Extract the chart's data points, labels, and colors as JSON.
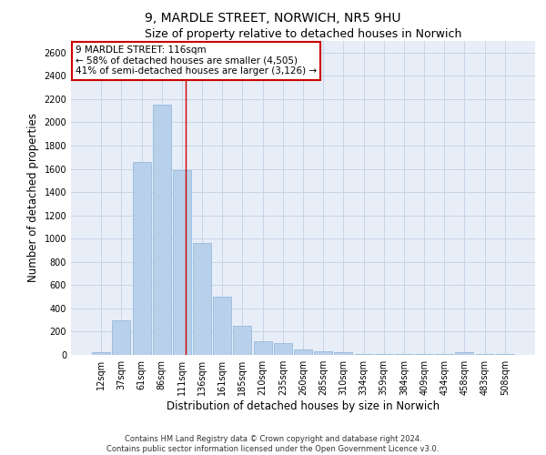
{
  "title1": "9, MARDLE STREET, NORWICH, NR5 9HU",
  "title2": "Size of property relative to detached houses in Norwich",
  "xlabel": "Distribution of detached houses by size in Norwich",
  "ylabel": "Number of detached properties",
  "categories": [
    "12sqm",
    "37sqm",
    "61sqm",
    "86sqm",
    "111sqm",
    "136sqm",
    "161sqm",
    "185sqm",
    "210sqm",
    "235sqm",
    "260sqm",
    "285sqm",
    "310sqm",
    "334sqm",
    "359sqm",
    "384sqm",
    "409sqm",
    "434sqm",
    "458sqm",
    "483sqm",
    "508sqm"
  ],
  "values": [
    20,
    300,
    1660,
    2150,
    1590,
    960,
    500,
    250,
    120,
    100,
    50,
    30,
    20,
    10,
    10,
    10,
    5,
    5,
    20,
    5,
    5
  ],
  "bar_color": "#b8d0ea",
  "bar_edge_color": "#8ab4d8",
  "grid_color": "#c8d4e8",
  "background_color": "#e8eef8",
  "annotation_box_text": "9 MARDLE STREET: 116sqm\n← 58% of detached houses are smaller (4,505)\n41% of semi-detached houses are larger (3,126) →",
  "annotation_box_color": "#ffffff",
  "annotation_box_edge_color": "#cc0000",
  "annotation_line_color": "#cc0000",
  "ylim": [
    0,
    2700
  ],
  "yticks": [
    0,
    200,
    400,
    600,
    800,
    1000,
    1200,
    1400,
    1600,
    1800,
    2000,
    2200,
    2400,
    2600
  ],
  "footer1": "Contains HM Land Registry data © Crown copyright and database right 2024.",
  "footer2": "Contains public sector information licensed under the Open Government Licence v3.0.",
  "title1_fontsize": 10,
  "title2_fontsize": 9,
  "tick_fontsize": 7,
  "ylabel_fontsize": 8.5,
  "xlabel_fontsize": 8.5,
  "annotation_fontsize": 7.5,
  "footer_fontsize": 6
}
